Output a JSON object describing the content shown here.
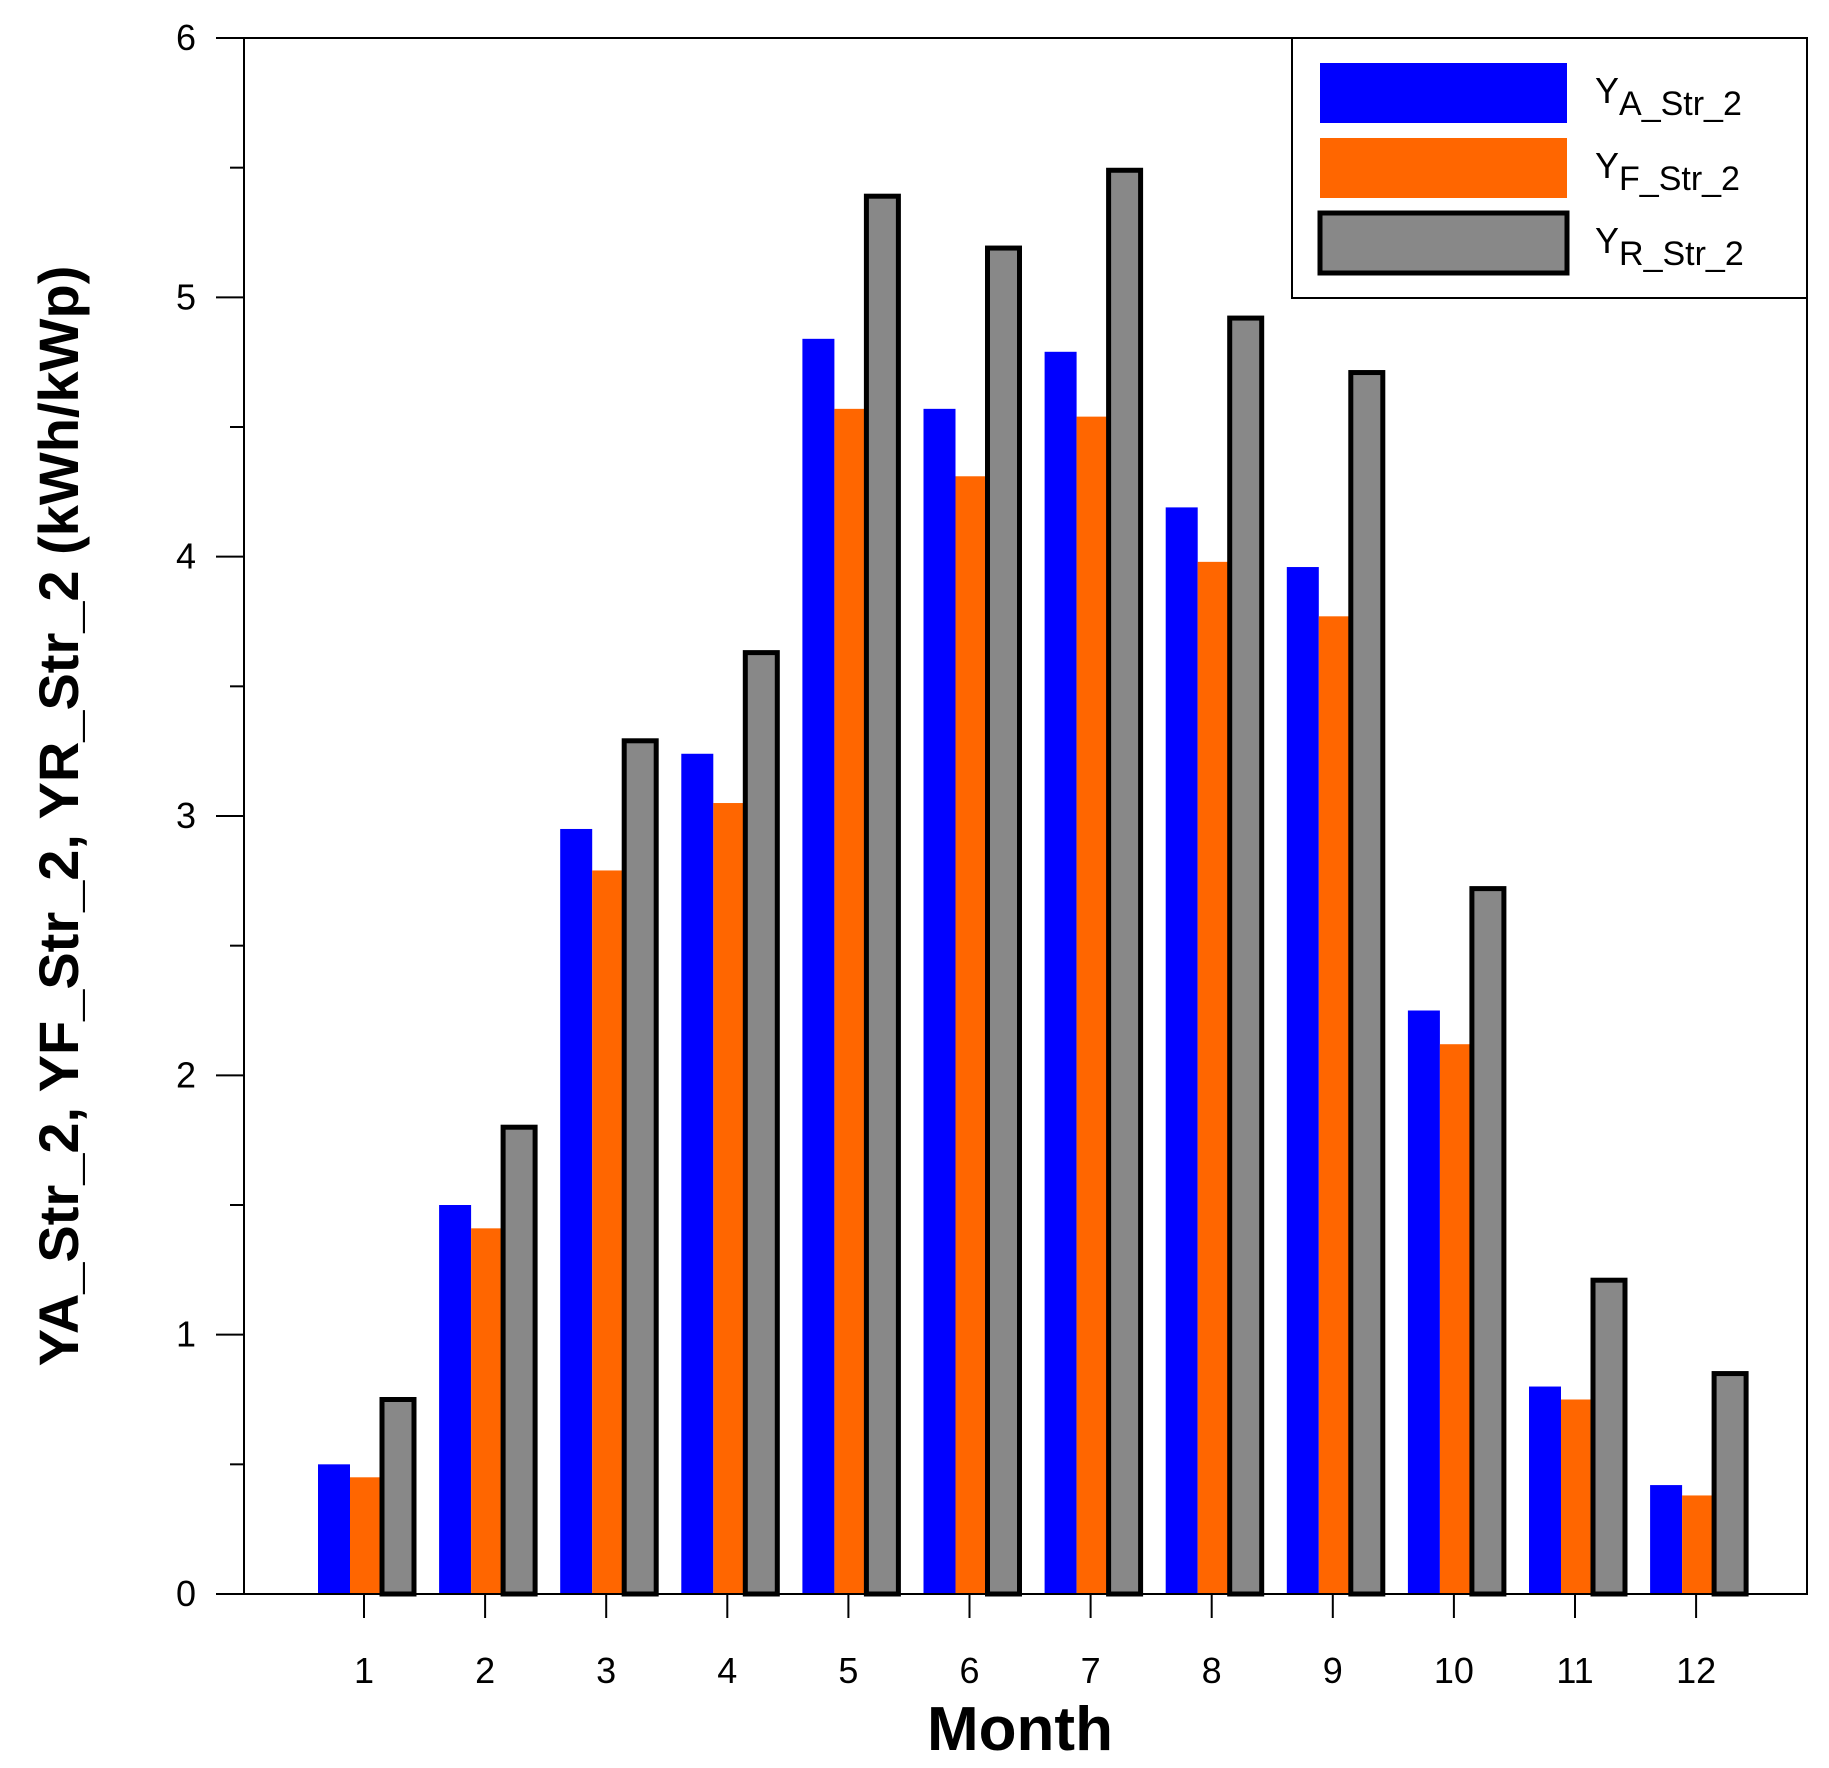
{
  "chart_data": {
    "type": "bar",
    "title": "",
    "xlabel": "Month",
    "ylabel": "YA_Str_2, YF_Str_2, YR_Str_2 (kWh/kWp)",
    "ylim": [
      0,
      6
    ],
    "y_ticks": [
      "0",
      "1",
      "2",
      "3",
      "4",
      "5",
      "6"
    ],
    "y_tick_values": [
      0,
      1,
      2,
      3,
      4,
      5,
      6
    ],
    "categories": [
      "1",
      "2",
      "3",
      "4",
      "5",
      "6",
      "7",
      "8",
      "9",
      "10",
      "11",
      "12"
    ],
    "legend_position": "top-right",
    "series": [
      {
        "name": "YA_Str_2",
        "legend_main": "Y",
        "legend_sub": "A_Str_2",
        "color": "#0000ff",
        "outlined": false,
        "values": [
          0.5,
          1.5,
          2.95,
          3.24,
          4.84,
          4.57,
          4.79,
          4.19,
          3.96,
          2.25,
          0.8,
          0.42
        ]
      },
      {
        "name": "YF_Str_2",
        "legend_main": "Y",
        "legend_sub": "F_Str_2",
        "color": "#ff6600",
        "outlined": false,
        "values": [
          0.45,
          1.41,
          2.79,
          3.05,
          4.57,
          4.31,
          4.54,
          3.98,
          3.77,
          2.12,
          0.75,
          0.38
        ]
      },
      {
        "name": "YR_Str_2",
        "legend_main": "Y",
        "legend_sub": "R_Str_2",
        "color": "#888888",
        "outlined": true,
        "values": [
          0.75,
          1.8,
          3.29,
          3.63,
          5.39,
          5.19,
          5.49,
          4.92,
          4.71,
          2.72,
          1.21,
          0.85
        ]
      }
    ]
  }
}
